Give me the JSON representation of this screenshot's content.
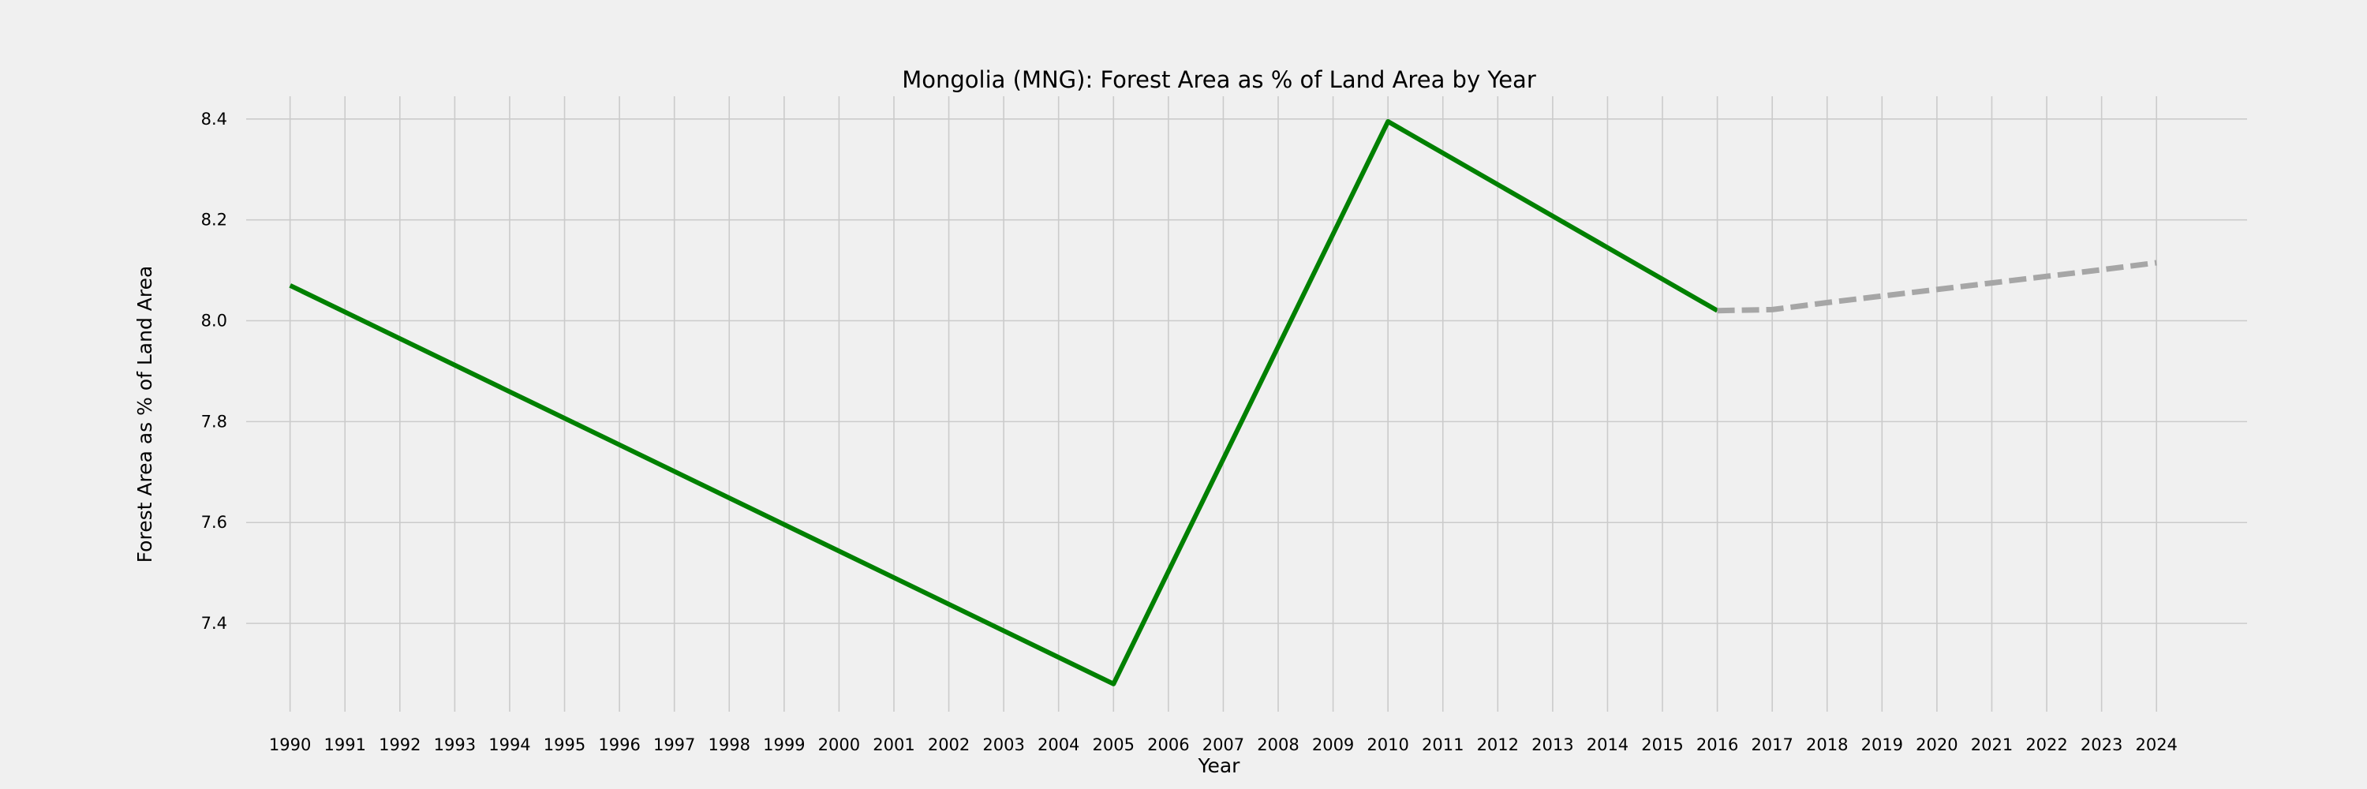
{
  "chart_data": {
    "type": "line",
    "title": "Mongolia (MNG): Forest Area as % of Land Area by Year",
    "xlabel": "Year",
    "ylabel": "Forest Area as % of Land Area",
    "x_ticks": [
      "1990",
      "1991",
      "1992",
      "1993",
      "1994",
      "1995",
      "1996",
      "1997",
      "1998",
      "1999",
      "2000",
      "2001",
      "2002",
      "2003",
      "2004",
      "2005",
      "2006",
      "2007",
      "2008",
      "2009",
      "2010",
      "2011",
      "2012",
      "2013",
      "2014",
      "2015",
      "2016",
      "2017",
      "2018",
      "2019",
      "2020",
      "2021",
      "2022",
      "2023",
      "2024"
    ],
    "y_ticks": [
      "7.4",
      "7.6",
      "7.8",
      "8.0",
      "8.2",
      "8.4"
    ],
    "xlim": [
      1989.2,
      2025.65
    ],
    "ylim": [
      7.225,
      8.445
    ],
    "grid": true,
    "series": [
      {
        "style": "solid",
        "color": "#008000",
        "x": [
          1990,
          2005,
          2010,
          2016
        ],
        "y": [
          8.07,
          7.28,
          8.395,
          8.02
        ]
      },
      {
        "style": "dashed",
        "color": "#a6a6a6",
        "x": [
          2016,
          2017,
          2018,
          2019,
          2020,
          2021,
          2022,
          2023,
          2024
        ],
        "y": [
          8.02,
          8.022,
          8.036,
          8.049,
          8.062,
          8.075,
          8.088,
          8.101,
          8.115
        ]
      }
    ]
  }
}
